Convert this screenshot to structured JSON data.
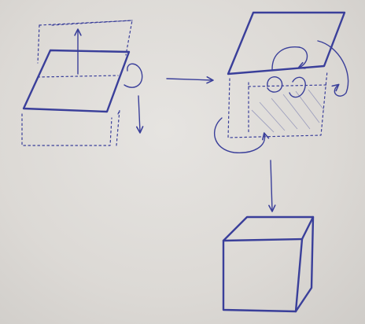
{
  "diagram": {
    "ink_color": "#3a3f9a",
    "paper_color": "#dedbd7",
    "panels": [
      {
        "id": "step-1",
        "description_shapes": [
          "dashed-box",
          "tilted-plane",
          "up-arrow",
          "down-arrow",
          "rotation-curl"
        ]
      },
      {
        "id": "step-2",
        "description_shapes": [
          "raised-plane",
          "dashed-box",
          "hatched-wall",
          "curl-arrows"
        ]
      },
      {
        "id": "step-3",
        "description_shapes": [
          "solid-cube"
        ]
      }
    ],
    "connectors": [
      {
        "from": "step-1",
        "to": "step-2",
        "direction": "right"
      },
      {
        "from": "step-2",
        "to": "step-3",
        "direction": "down"
      }
    ]
  }
}
